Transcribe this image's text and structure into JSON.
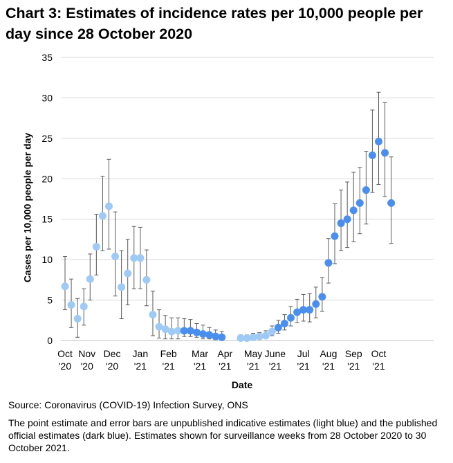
{
  "title": "Chart 3: Estimates of incidence rates per 10,000 people per day since 28 October 2020",
  "source": "Source: Coronavirus (COVID-19) Infection Survey, ONS",
  "note": "The point estimate and error bars are unpublished indicative estimates (light blue) and the published official estimates (dark blue).  Estimates shown for surveillance weeks from 28 October 2020 to 30 October 2021.",
  "colors": {
    "light": "#9fcaf5",
    "dark": "#4a8fed",
    "errorbar": "#595959",
    "grid": "#d9d9d9"
  },
  "chart_data": {
    "type": "scatter",
    "xlabel": "Date",
    "ylabel": "Cases per 10,000 people per day",
    "ylim": [
      0,
      35
    ],
    "yticks": [
      0,
      5,
      10,
      15,
      20,
      25,
      30,
      35
    ],
    "grid": true,
    "x_tick_labels": [
      {
        "line1": "Oct",
        "line2": "'20",
        "week": 0
      },
      {
        "line1": "Nov",
        "line2": "'20",
        "week": 3.5
      },
      {
        "line1": "Dec",
        "line2": "'20",
        "week": 7.5
      },
      {
        "line1": "Jan",
        "line2": "'21",
        "week": 12
      },
      {
        "line1": "Feb",
        "line2": "'21",
        "week": 16.5
      },
      {
        "line1": "Mar",
        "line2": "'21",
        "week": 21.5
      },
      {
        "line1": "Apr",
        "line2": "'21",
        "week": 25.5
      },
      {
        "line1": "May",
        "line2": "'21",
        "week": 30
      },
      {
        "line1": "June",
        "line2": "'21",
        "week": 33.5
      },
      {
        "line1": "Jul",
        "line2": "'21",
        "week": 38
      },
      {
        "line1": "Aug",
        "line2": "'21",
        "week": 42
      },
      {
        "line1": "Sep",
        "line2": "'21",
        "week": 46
      },
      {
        "line1": "Oct",
        "line2": "'21",
        "week": 50
      }
    ],
    "series": [
      {
        "status": "light",
        "points": [
          {
            "week": 0,
            "y": 6.7,
            "low": 3.8,
            "high": 10.4
          },
          {
            "week": 1,
            "y": 4.4,
            "low": 1.6,
            "high": 7.6
          },
          {
            "week": 2,
            "y": 2.7,
            "low": 0.4,
            "high": 5.2
          },
          {
            "week": 3,
            "y": 4.2,
            "low": 1.9,
            "high": 6.4
          },
          {
            "week": 4,
            "y": 7.6,
            "low": 5.0,
            "high": 10.7
          },
          {
            "week": 5,
            "y": 11.6,
            "low": 8.1,
            "high": 15.6
          },
          {
            "week": 6,
            "y": 15.4,
            "low": 11.1,
            "high": 20.3
          },
          {
            "week": 7,
            "y": 16.6,
            "low": 11.3,
            "high": 22.4
          },
          {
            "week": 8,
            "y": 10.4,
            "low": 5.5,
            "high": 15.9
          },
          {
            "week": 9,
            "y": 6.6,
            "low": 2.7,
            "high": 11.1
          },
          {
            "week": 10,
            "y": 8.3,
            "low": 4.4,
            "high": 12.5
          },
          {
            "week": 11,
            "y": 10.2,
            "low": 6.4,
            "high": 14.1
          },
          {
            "week": 12,
            "y": 10.2,
            "low": 6.4,
            "high": 14.0
          },
          {
            "week": 13,
            "y": 7.5,
            "low": 4.3,
            "high": 11.2
          },
          {
            "week": 14,
            "y": 3.2,
            "low": 0.6,
            "high": 6.1
          },
          {
            "week": 15,
            "y": 1.7,
            "low": 0.3,
            "high": 3.8
          },
          {
            "week": 16,
            "y": 1.4,
            "low": 0.2,
            "high": 3.1
          },
          {
            "week": 17,
            "y": 1.1,
            "low": 0.2,
            "high": 2.8
          },
          {
            "week": 18,
            "y": 1.2,
            "low": 0.2,
            "high": 2.8
          },
          {
            "week": 28,
            "y": 0.3,
            "low": 0.1,
            "high": 0.7
          },
          {
            "week": 29,
            "y": 0.3,
            "low": 0.1,
            "high": 0.7
          },
          {
            "week": 30,
            "y": 0.4,
            "low": 0.1,
            "high": 0.9
          },
          {
            "week": 31,
            "y": 0.5,
            "low": 0.2,
            "high": 1.0
          },
          {
            "week": 32,
            "y": 0.6,
            "low": 0.3,
            "high": 1.2
          },
          {
            "week": 33,
            "y": 1.1,
            "low": 0.6,
            "high": 1.8
          }
        ]
      },
      {
        "status": "dark",
        "points": [
          {
            "week": 19,
            "y": 1.2,
            "low": 0.5,
            "high": 2.7
          },
          {
            "week": 20,
            "y": 1.2,
            "low": 0.5,
            "high": 2.6
          },
          {
            "week": 21,
            "y": 1.0,
            "low": 0.4,
            "high": 2.1
          },
          {
            "week": 22,
            "y": 0.8,
            "low": 0.2,
            "high": 1.9
          },
          {
            "week": 23,
            "y": 0.7,
            "low": 0.2,
            "high": 1.6
          },
          {
            "week": 24,
            "y": 0.5,
            "low": 0.1,
            "high": 1.3
          },
          {
            "week": 25,
            "y": 0.4,
            "low": 0.1,
            "high": 1.1
          },
          {
            "week": 34,
            "y": 1.6,
            "low": 0.9,
            "high": 2.5
          },
          {
            "week": 35,
            "y": 2.1,
            "low": 1.3,
            "high": 3.2
          },
          {
            "week": 36,
            "y": 2.8,
            "low": 1.8,
            "high": 4.2
          },
          {
            "week": 37,
            "y": 3.5,
            "low": 2.2,
            "high": 5.1
          },
          {
            "week": 38,
            "y": 3.8,
            "low": 2.4,
            "high": 5.7
          },
          {
            "week": 39,
            "y": 3.8,
            "low": 2.3,
            "high": 5.8
          },
          {
            "week": 40,
            "y": 4.5,
            "low": 2.8,
            "high": 6.6
          },
          {
            "week": 41,
            "y": 5.4,
            "low": 3.6,
            "high": 7.8
          },
          {
            "week": 42,
            "y": 9.6,
            "low": 7.1,
            "high": 12.6
          },
          {
            "week": 43,
            "y": 12.9,
            "low": 9.5,
            "high": 16.9
          },
          {
            "week": 44,
            "y": 14.5,
            "low": 11.1,
            "high": 18.6
          },
          {
            "week": 45,
            "y": 15.0,
            "low": 11.5,
            "high": 19.6
          },
          {
            "week": 46,
            "y": 16.1,
            "low": 12.2,
            "high": 20.8
          },
          {
            "week": 47,
            "y": 17.0,
            "low": 13.2,
            "high": 21.4
          },
          {
            "week": 48,
            "y": 18.6,
            "low": 14.4,
            "high": 23.4
          },
          {
            "week": 49,
            "y": 22.9,
            "low": 18.3,
            "high": 28.5
          },
          {
            "week": 50,
            "y": 24.6,
            "low": 19.3,
            "high": 30.7
          },
          {
            "week": 51,
            "y": 23.2,
            "low": 17.8,
            "high": 29.4
          },
          {
            "week": 52,
            "y": 17.0,
            "low": 12.0,
            "high": 22.7
          }
        ]
      }
    ]
  }
}
